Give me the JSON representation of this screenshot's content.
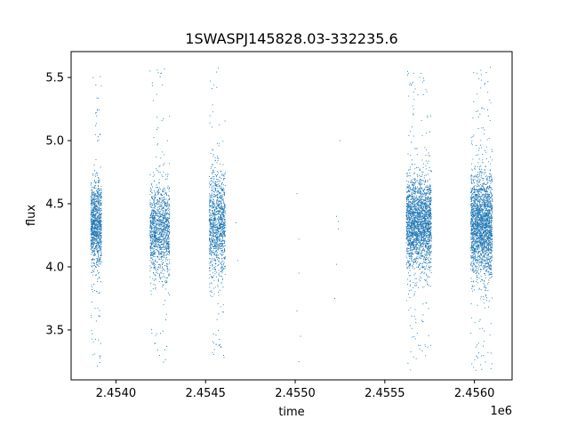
{
  "chart_data": {
    "type": "scatter",
    "title": "1SWASPJ145828.03-332235.6",
    "xlabel": "time",
    "ylabel": "flux",
    "x_offset_label": "1e6",
    "xlim": [
      2.45375,
      2.45621
    ],
    "ylim": [
      3.105,
      5.705
    ],
    "x_ticks": [
      2.454,
      2.4545,
      2.455,
      2.4555,
      2.456
    ],
    "x_tick_labels": [
      "2.4540",
      "2.4545",
      "2.4550",
      "2.4555",
      "2.4560"
    ],
    "y_ticks": [
      3.5,
      4.0,
      4.5,
      5.0,
      5.5
    ],
    "y_tick_labels": [
      "3.5",
      "4.0",
      "4.5",
      "5.0",
      "5.5"
    ],
    "grid": false,
    "marker_color": "#1f77b4",
    "clusters": [
      {
        "x_range": [
          2.45386,
          2.45392
        ],
        "y_center": 4.33,
        "y_spread": 0.17,
        "y_min": 3.18,
        "y_max": 5.55,
        "count": 1100
      },
      {
        "x_range": [
          2.45419,
          2.4543
        ],
        "y_center": 4.3,
        "y_spread": 0.18,
        "y_min": 3.2,
        "y_max": 5.58,
        "count": 1300
      },
      {
        "x_range": [
          2.45452,
          2.45461
        ],
        "y_center": 4.33,
        "y_spread": 0.2,
        "y_min": 3.18,
        "y_max": 5.58,
        "count": 1200
      },
      {
        "x_range": [
          2.45562,
          2.45576
        ],
        "y_center": 4.35,
        "y_spread": 0.18,
        "y_min": 3.18,
        "y_max": 5.55,
        "count": 2400
      },
      {
        "x_range": [
          2.45598,
          2.4561
        ],
        "y_center": 4.33,
        "y_spread": 0.2,
        "y_min": 3.17,
        "y_max": 5.58,
        "count": 2400
      }
    ],
    "sparse_points": [
      {
        "x": 2.45467,
        "y": 4.35
      },
      {
        "x": 2.45468,
        "y": 4.05
      },
      {
        "x": 2.45501,
        "y": 4.58
      },
      {
        "x": 2.45502,
        "y": 4.22
      },
      {
        "x": 2.45502,
        "y": 3.95
      },
      {
        "x": 2.45503,
        "y": 3.45
      },
      {
        "x": 2.45502,
        "y": 3.25
      },
      {
        "x": 2.45501,
        "y": 3.65
      },
      {
        "x": 2.45523,
        "y": 4.4
      },
      {
        "x": 2.45524,
        "y": 4.3
      },
      {
        "x": 2.45523,
        "y": 4.02
      },
      {
        "x": 2.45522,
        "y": 3.75
      },
      {
        "x": 2.45525,
        "y": 5.0
      },
      {
        "x": 2.45524,
        "y": 4.36
      }
    ]
  }
}
